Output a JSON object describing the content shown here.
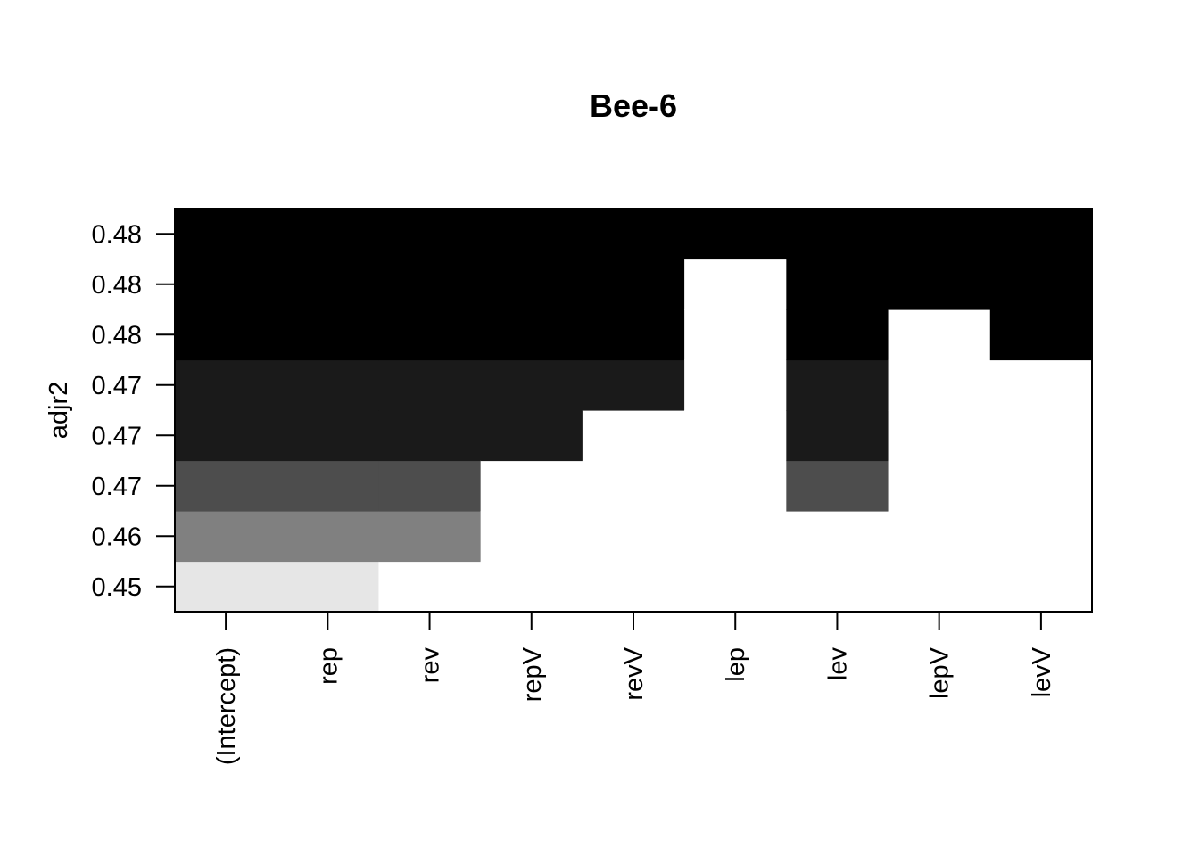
{
  "chart_data": {
    "type": "heatmap",
    "title": "Bee-6",
    "xlabel": "",
    "ylabel": "adjr2",
    "x_categories": [
      "(Intercept)",
      "rep",
      "rev",
      "repV",
      "revV",
      "lep",
      "lev",
      "lepV",
      "levV"
    ],
    "y_tick_labels": [
      "0.45",
      "0.46",
      "0.47",
      "0.47",
      "0.47",
      "0.48",
      "0.48",
      "0.48"
    ],
    "cells": [
      [
        1,
        1,
        1,
        1,
        1,
        1,
        1,
        1
      ],
      [
        1,
        1,
        1,
        1,
        1,
        1,
        1,
        1
      ],
      [
        0,
        1,
        1,
        1,
        1,
        1,
        1,
        1
      ],
      [
        0,
        0,
        0,
        1,
        1,
        1,
        1,
        1
      ],
      [
        0,
        0,
        0,
        0,
        1,
        1,
        1,
        1
      ],
      [
        0,
        0,
        0,
        0,
        0,
        0,
        0,
        1
      ],
      [
        0,
        0,
        1,
        1,
        1,
        1,
        1,
        1
      ],
      [
        0,
        0,
        0,
        0,
        0,
        0,
        1,
        1
      ],
      [
        0,
        0,
        0,
        0,
        0,
        1,
        1,
        1
      ]
    ],
    "row_shades": [
      "#e6e6e6",
      "#808080",
      "#4d4d4d",
      "#1a1a1a",
      "#1a1a1a",
      "#000000",
      "#000000",
      "#000000"
    ],
    "empty_color": "#ffffff",
    "grid": false,
    "legend": "none"
  }
}
